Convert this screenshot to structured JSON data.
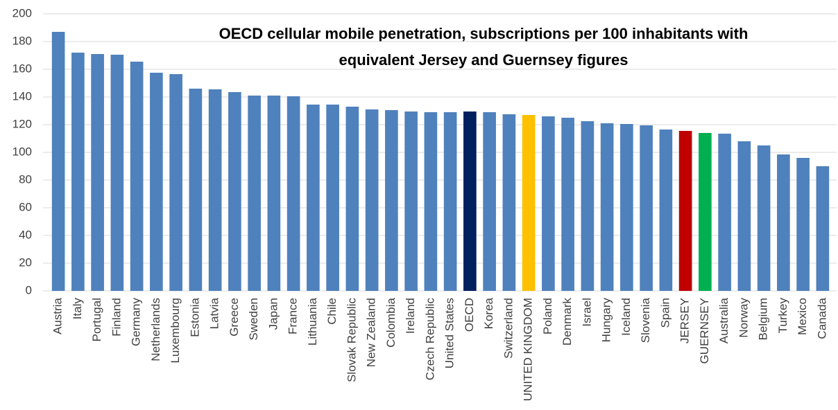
{
  "chart_data": {
    "type": "bar",
    "title": [
      "OECD cellular mobile penetration, subscriptions per 100 inhabitants with",
      "equivalent Jersey and Guernsey figures"
    ],
    "categories": [
      "Austria",
      "Italy",
      "Portugal",
      "Finland",
      "Germany",
      "Netherlands",
      "Luxembourg",
      "Estonia",
      "Latvia",
      "Greece",
      "Sweden",
      "Japan",
      "France",
      "Lithuania",
      "Chile",
      "Slovak Republic",
      "New Zealand",
      "Colombia",
      "Ireland",
      "Czech Republic",
      "United States",
      "OECD",
      "Korea",
      "Switzerland",
      "UNITED KINGDOM",
      "Poland",
      "Denmark",
      "Israel",
      "Hungary",
      "Iceland",
      "Slovenia",
      "Spain",
      "JERSEY",
      "GUERNSEY",
      "Australia",
      "Norway",
      "Belgium",
      "Turkey",
      "Mexico",
      "Canada"
    ],
    "values": [
      187,
      172,
      171,
      170.5,
      165.5,
      157.5,
      156.5,
      146,
      145.5,
      143.5,
      141,
      141,
      140.5,
      134.5,
      134.5,
      133,
      131,
      130.5,
      129.5,
      129,
      129,
      129.5,
      129,
      127.5,
      127,
      126,
      125,
      122.5,
      121,
      120.5,
      119.5,
      116.5,
      115.5,
      114,
      113.5,
      108,
      105,
      98.5,
      96,
      90
    ],
    "color": "#4f81bd",
    "colors": {
      "OECD": "#002060",
      "UNITED KINGDOM": "#ffc000",
      "JERSEY": "#c00000",
      "GUERNSEY": "#00b050"
    },
    "ylim": [
      0,
      200
    ],
    "yticks": [
      0,
      20,
      40,
      60,
      80,
      100,
      120,
      140,
      160,
      180,
      200
    ],
    "grid": true
  }
}
